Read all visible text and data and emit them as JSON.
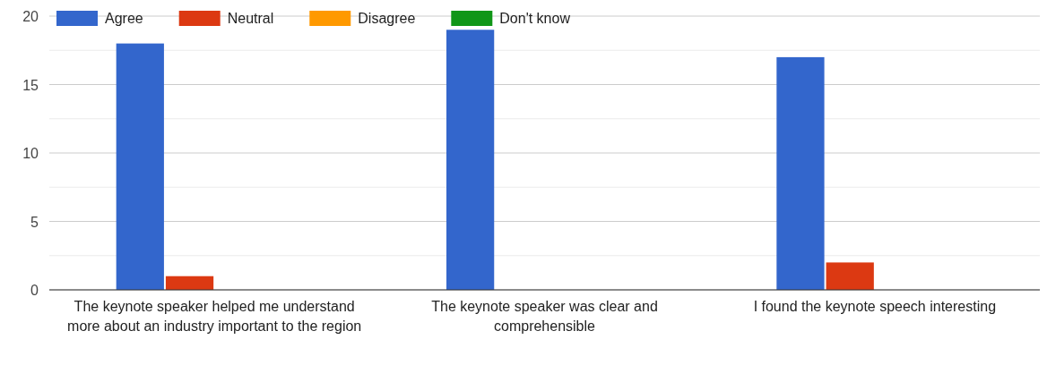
{
  "chart_data": {
    "type": "bar",
    "categories": [
      "The keynote speaker helped me understand more about an industry important to the region",
      "The keynote speaker was clear and comprehensible",
      "I found the keynote speech interesting"
    ],
    "series": [
      {
        "name": "Agree",
        "color": "#3366cc",
        "values": [
          18,
          19,
          17
        ]
      },
      {
        "name": "Neutral",
        "color": "#dc3912",
        "values": [
          1,
          0,
          2
        ]
      },
      {
        "name": "Disagree",
        "color": "#ff9900",
        "values": [
          0,
          0,
          0
        ]
      },
      {
        "name": "Don't know",
        "color": "#109618",
        "values": [
          0,
          0,
          0
        ]
      }
    ],
    "ylim": [
      0,
      20
    ],
    "yticks": [
      0,
      {
        "value": 2.5,
        "label": null
      },
      5,
      {
        "value": 7.5,
        "label": null
      },
      10,
      {
        "value": 12.5,
        "label": null
      },
      15,
      {
        "value": 17.5,
        "label": null
      },
      20
    ],
    "grid": true,
    "legend": "top"
  }
}
